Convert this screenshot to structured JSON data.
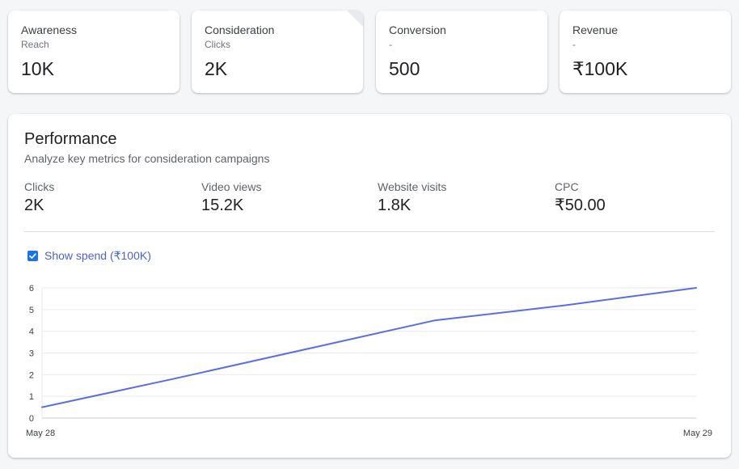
{
  "kpis": [
    {
      "title": "Awareness",
      "sub": "Reach",
      "value": "10K"
    },
    {
      "title": "Consideration",
      "sub": "Clicks",
      "value": "2K",
      "selected": true
    },
    {
      "title": "Conversion",
      "sub": "-",
      "value": "500"
    },
    {
      "title": "Revenue",
      "sub": "-",
      "value": "₹100K"
    }
  ],
  "performance": {
    "title": "Performance",
    "subtitle": "Analyze key metrics for consideration campaigns",
    "metrics": [
      {
        "label": "Clicks",
        "value": "2K"
      },
      {
        "label": "Video views",
        "value": "15.2K"
      },
      {
        "label": "Website visits",
        "value": "1.8K"
      },
      {
        "label": "CPC",
        "value": "₹50.00"
      }
    ],
    "show_spend": {
      "label": "Show spend (₹100K)",
      "checked": true
    }
  },
  "colors": {
    "line": "#5b6ee1",
    "checkbox": "#1a73e8"
  },
  "icons": {
    "checkbox": "check-icon"
  },
  "chart_data": {
    "type": "line",
    "title": "",
    "xlabel": "",
    "ylabel": "",
    "x": [
      0,
      0.2,
      0.6,
      0.8,
      1.0
    ],
    "x_tick_labels": [
      "May 28",
      "May 29"
    ],
    "series": [
      {
        "values": [
          0.5,
          1.8,
          4.5,
          5.2,
          6.0
        ]
      }
    ],
    "yticks": [
      0,
      1,
      2,
      3,
      4,
      5,
      6
    ],
    "ylim": [
      0,
      6
    ],
    "grid": true
  }
}
